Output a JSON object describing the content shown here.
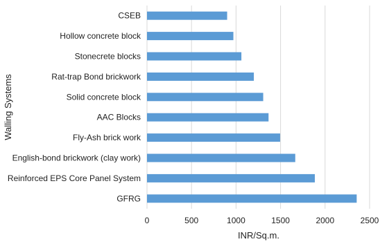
{
  "chart_data": {
    "type": "bar",
    "orientation": "horizontal",
    "categories": [
      "CSEB",
      "Hollow concrete block",
      "Stonecrete blocks",
      "Rat-trap Bond brickwork",
      "Solid concrete block",
      "AAC Blocks",
      "Fly-Ash brick work",
      "English-bond brickwork (clay work)",
      "Reinforced EPS Core Panel System",
      "GFRG"
    ],
    "values": [
      900,
      970,
      1060,
      1200,
      1305,
      1365,
      1495,
      1665,
      1885,
      2355
    ],
    "xlabel": "INR/Sq.m.",
    "ylabel": "Walling Systems",
    "xlim": [
      0,
      2500
    ],
    "xticks": [
      0,
      500,
      1000,
      1500,
      2000,
      2500
    ],
    "grid": true,
    "bar_color": "#5b9bd5"
  }
}
